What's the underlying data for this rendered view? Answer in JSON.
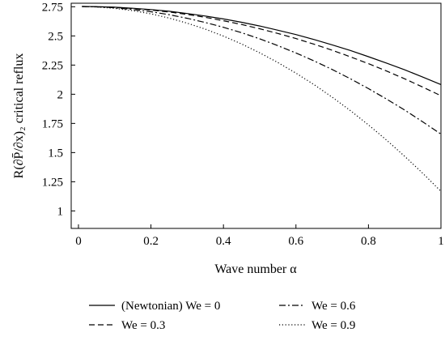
{
  "chart_data": {
    "type": "line",
    "x": [
      0.01,
      0.05,
      0.1,
      0.15,
      0.2,
      0.25,
      0.3,
      0.35,
      0.4,
      0.45,
      0.5,
      0.55,
      0.6,
      0.65,
      0.7,
      0.75,
      0.8,
      0.85,
      0.9,
      0.95,
      1.0
    ],
    "series": [
      {
        "name": "(Newtonian) We = 0",
        "dash": "solid",
        "color": "#000000",
        "values": [
          2.752,
          2.751,
          2.746,
          2.737,
          2.726,
          2.711,
          2.692,
          2.67,
          2.645,
          2.617,
          2.585,
          2.549,
          2.511,
          2.469,
          2.423,
          2.375,
          2.322,
          2.267,
          2.209,
          2.147,
          2.083
        ]
      },
      {
        "name": "We = 0.3",
        "dash": "dash",
        "color": "#000000",
        "values": [
          2.752,
          2.75,
          2.745,
          2.735,
          2.722,
          2.705,
          2.684,
          2.659,
          2.63,
          2.598,
          2.561,
          2.521,
          2.477,
          2.429,
          2.377,
          2.321,
          2.262,
          2.199,
          2.132,
          2.061,
          1.987
        ]
      },
      {
        "name": "We = 0.6",
        "dash": "dashdot",
        "color": "#000000",
        "values": [
          2.752,
          2.749,
          2.741,
          2.726,
          2.707,
          2.682,
          2.651,
          2.615,
          2.574,
          2.527,
          2.475,
          2.417,
          2.354,
          2.286,
          2.212,
          2.133,
          2.048,
          1.959,
          1.864,
          1.763,
          1.658
        ]
      },
      {
        "name": "We = 0.9",
        "dash": "dot",
        "color": "#000000",
        "values": [
          2.752,
          2.748,
          2.736,
          2.716,
          2.689,
          2.653,
          2.609,
          2.558,
          2.498,
          2.431,
          2.355,
          2.272,
          2.181,
          2.082,
          1.975,
          1.86,
          1.737,
          1.607,
          1.468,
          1.322,
          1.168
        ]
      }
    ],
    "xlabel": "Wave number α",
    "ylabel": "R(∂P̄/∂x)₂ critical reflux",
    "xlim": [
      -0.02,
      1.0
    ],
    "ylim": [
      0.85,
      2.78
    ],
    "xticks": [
      0,
      0.2,
      0.4,
      0.6,
      0.8,
      1
    ],
    "xtick_labels": [
      "0",
      "0.2",
      "0.4",
      "0.6",
      "0.8",
      "1"
    ],
    "yticks": [
      1,
      1.25,
      1.5,
      1.75,
      2,
      2.25,
      2.5,
      2.75
    ],
    "ytick_labels": [
      "1",
      "1.25",
      "1.5",
      "1.75",
      "2",
      "2.25",
      "2.5",
      "2.75"
    ],
    "grid": false,
    "legend_position": "bottom"
  }
}
